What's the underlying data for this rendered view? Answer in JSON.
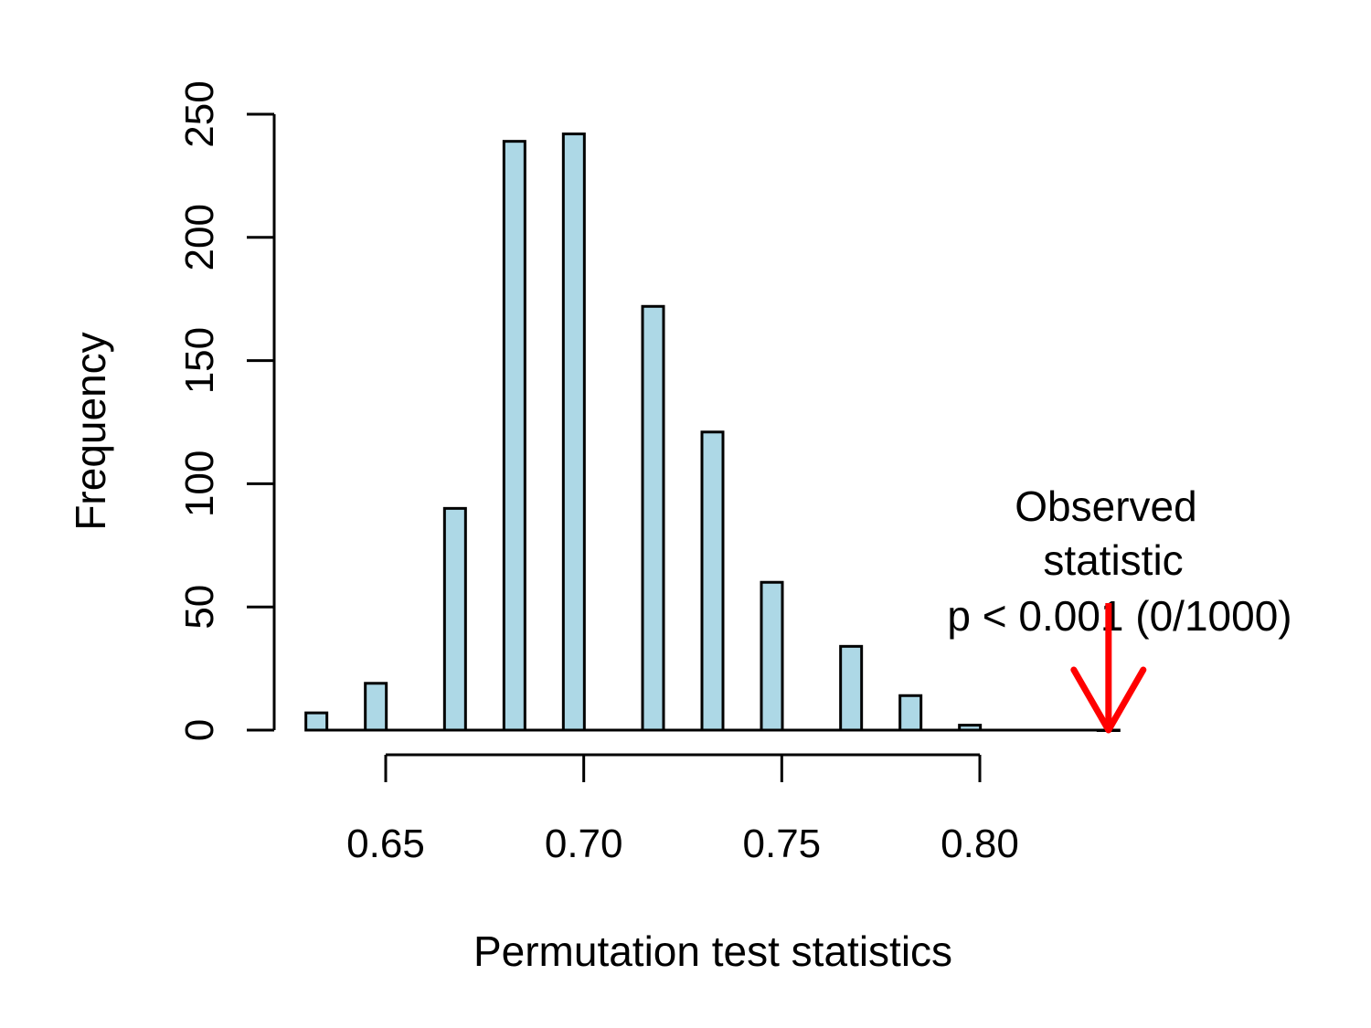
{
  "chart_data": {
    "type": "bar",
    "title": "",
    "xlabel": "Permutation test statistics",
    "ylabel": "Frequency",
    "x_ticks": [
      "0.65",
      "0.70",
      "0.75",
      "0.80"
    ],
    "y_ticks": [
      "0",
      "50",
      "100",
      "150",
      "200",
      "250"
    ],
    "xlim": [
      0.632,
      0.84
    ],
    "ylim": [
      0,
      250
    ],
    "x": [
      0.6325,
      0.6475,
      0.6675,
      0.6825,
      0.6975,
      0.7175,
      0.7325,
      0.7475,
      0.7675,
      0.7825,
      0.7975,
      0.8325
    ],
    "values": [
      7,
      19,
      90,
      239,
      242,
      172,
      121,
      60,
      34,
      14,
      2,
      0
    ],
    "bar_color": "#add8e6",
    "grid": false,
    "annotation": {
      "lines": [
        "Observed",
        "statistic",
        "p < 0.001 (0/1000)"
      ],
      "observed_value": 0.8325,
      "arrow_color": "#ff0000"
    }
  }
}
